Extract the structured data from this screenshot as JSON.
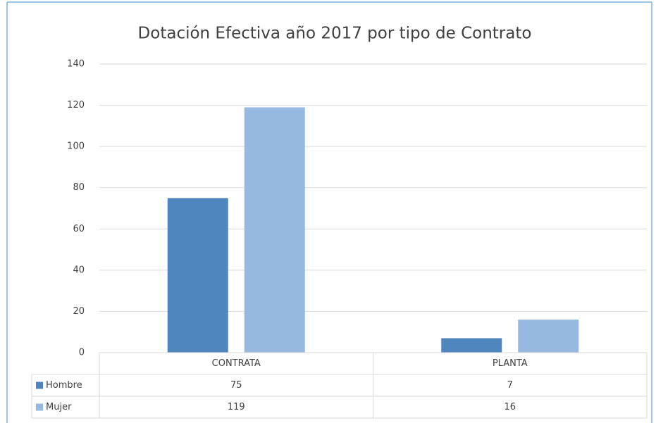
{
  "chart_data": {
    "type": "bar",
    "title": "Dotación Efectiva año 2017 por tipo de Contrato",
    "categories": [
      "CONTRATA",
      "PLANTA"
    ],
    "series": [
      {
        "name": "Hombre",
        "color": "#4f86bd",
        "values": [
          75,
          7
        ]
      },
      {
        "name": "Mujer",
        "color": "#97b9e0",
        "values": [
          119,
          16
        ]
      }
    ],
    "ylim": [
      0,
      140
    ],
    "yticks": [
      0,
      20,
      40,
      60,
      80,
      100,
      120,
      140
    ],
    "grid": true,
    "data_table": true
  }
}
